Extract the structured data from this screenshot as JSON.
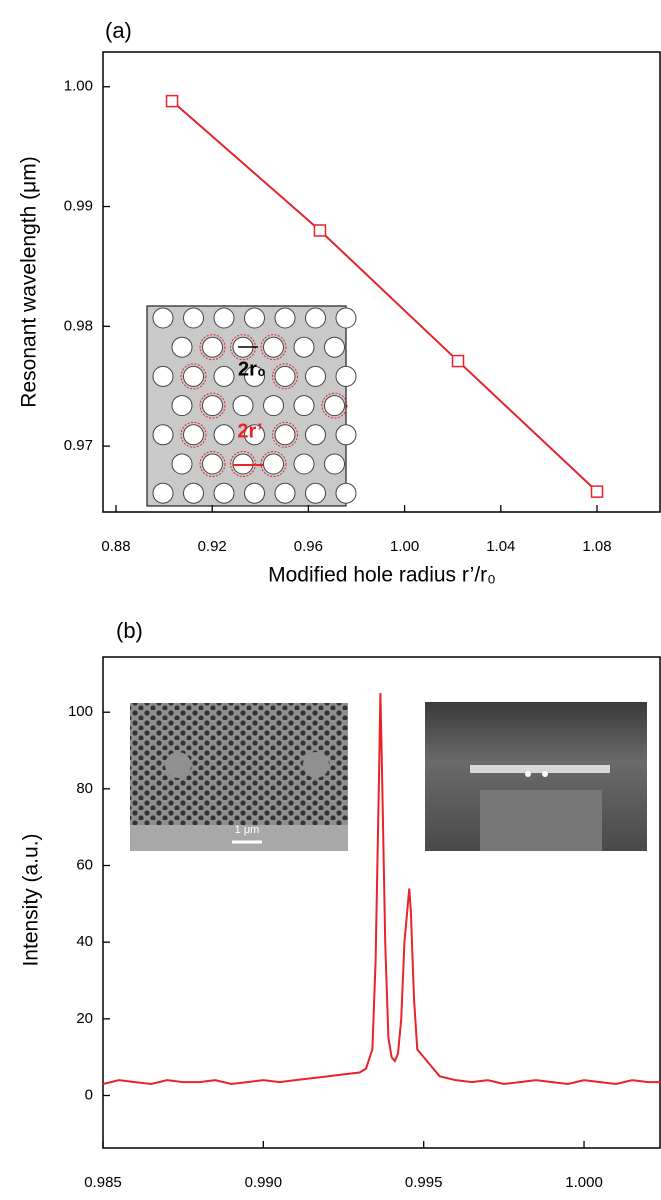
{
  "chart_data": [
    {
      "type": "line",
      "panel_label": "(a)",
      "x_label": "Modified hole radius r’/r₀",
      "y_label": "Resonant wavelength (μm)",
      "x": [
        0.9033,
        0.9648,
        1.0222,
        1.08
      ],
      "series": [
        {
          "color": "#e8232a",
          "values": [
            0.9988,
            0.988,
            0.9771,
            0.9662
          ]
        }
      ],
      "markers": true,
      "xlim": [
        0.8746,
        1.1066
      ],
      "ylim": [
        0.9645,
        1.0029
      ],
      "xticks": [
        0.88,
        0.92,
        0.96,
        {
          "value": 1.0,
          "label": "1.00"
        },
        1.04,
        1.08
      ],
      "yticks": [
        0.97,
        0.98,
        0.99,
        {
          "value": 1.0,
          "label": "1.00"
        }
      ],
      "annotations": [
        "2r₀",
        "2r’"
      ]
    },
    {
      "type": "line",
      "panel_label": "(b)",
      "y_label": "Intensity (a.u.)",
      "x": [
        0.985,
        0.9855,
        0.986,
        0.9865,
        0.987,
        0.9875,
        0.988,
        0.9885,
        0.989,
        0.9895,
        0.99,
        0.9905,
        0.991,
        0.9915,
        0.992,
        0.9925,
        0.993,
        0.9932,
        0.9934,
        0.9935,
        0.9936,
        0.99365,
        0.9937,
        0.9938,
        0.9939,
        0.994,
        0.9941,
        0.9942,
        0.9943,
        0.9944,
        0.99455,
        0.9946,
        0.9947,
        0.9948,
        0.995,
        0.9952,
        0.9955,
        0.996,
        0.9965,
        0.997,
        0.9975,
        0.998,
        0.9985,
        0.999,
        0.9995,
        1.0,
        1.0005,
        1.001,
        1.0015,
        1.002,
        1.0024
      ],
      "series": [
        {
          "color": "#e8232a",
          "values": [
            3,
            4,
            3.5,
            3,
            4,
            3.5,
            3.5,
            4,
            3,
            3.5,
            4,
            3.5,
            4,
            4.5,
            5,
            5.5,
            6,
            7,
            12,
            35,
            80,
            105,
            85,
            40,
            15,
            10,
            9,
            11,
            20,
            40,
            54,
            48,
            25,
            12,
            10,
            8,
            5,
            4,
            3.5,
            4,
            3,
            3.5,
            4,
            3.5,
            3,
            4,
            3.5,
            3,
            4,
            3.5,
            3.5
          ]
        }
      ],
      "markers": false,
      "xlim": [
        0.985,
        1.0024
      ],
      "ylim": [
        -13.7,
        114.4
      ],
      "xticks": [
        0.985,
        {
          "value": 0.99,
          "label": "0.990"
        },
        0.995,
        {
          "value": 1.0,
          "label": "1.000"
        }
      ],
      "yticks": [
        0,
        20,
        40,
        60,
        80,
        100
      ],
      "annotations": [
        "1 μm"
      ]
    }
  ]
}
